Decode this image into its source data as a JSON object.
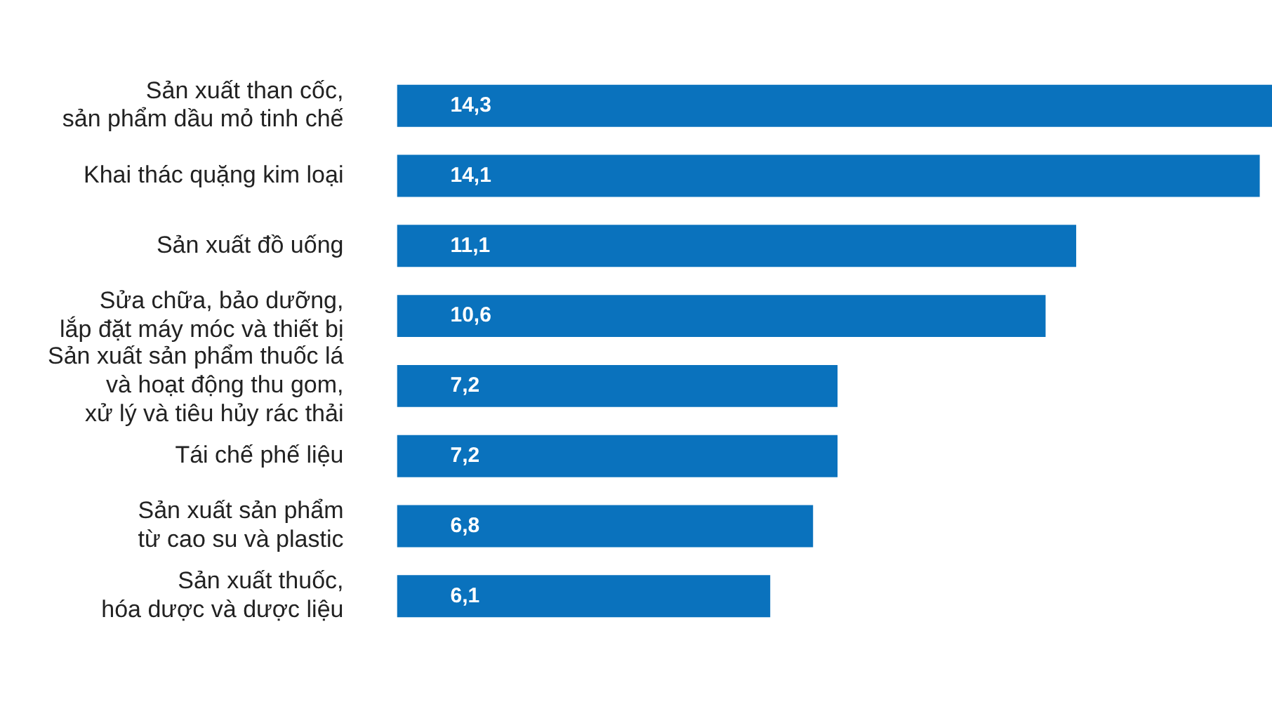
{
  "chart_data": {
    "type": "bar",
    "orientation": "horizontal",
    "value_labels": [
      "14,3",
      "14,1",
      "11,1",
      "10,6",
      "7,2",
      "7,2",
      "6,8",
      "6,1"
    ],
    "categories": [
      "Sản xuất than cốc,\nsản phẩm dầu mỏ tinh chế",
      "Khai thác quặng kim loại",
      "Sản xuất đồ uống",
      "Sửa chữa, bảo dưỡng,\nlắp đặt máy móc và thiết bị",
      "Sản xuất sản phẩm thuốc lá\nvà hoạt động thu gom,\nxử lý và tiêu hủy rác thải",
      "Tái chế phế liệu",
      "Sản xuất sản phẩm\ntừ cao su và plastic",
      "Sản xuất thuốc,\nhóa dược và dược liệu"
    ],
    "values": [
      14.3,
      14.1,
      11.1,
      10.6,
      7.2,
      7.2,
      6.8,
      6.1
    ],
    "color": "#0a72bd"
  }
}
